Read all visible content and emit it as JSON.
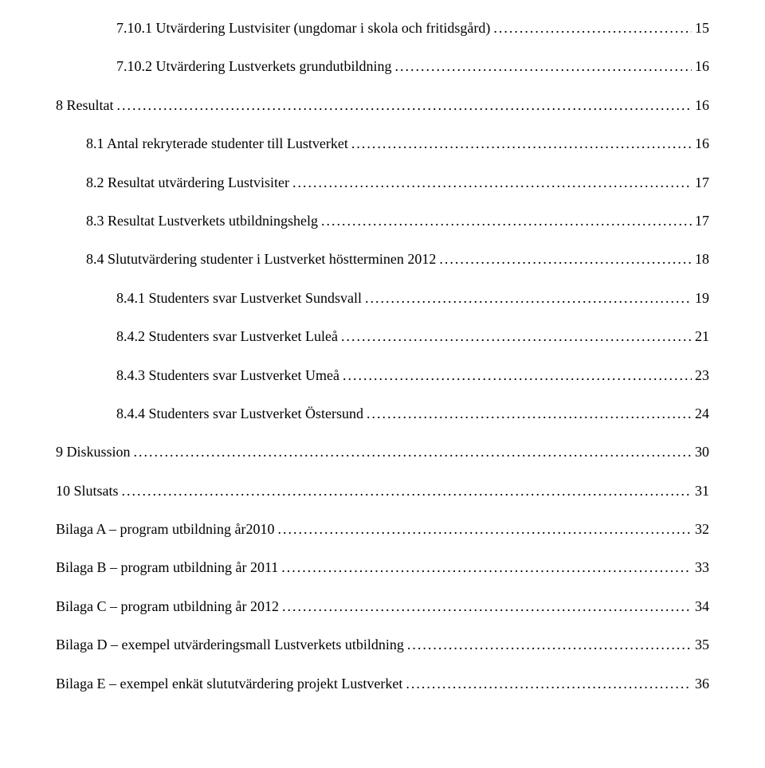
{
  "entries": [
    {
      "indent": 2,
      "label": "7.10.1 Utvärdering Lustvisiter (ungdomar i skola och fritidsgård)",
      "page": "15"
    },
    {
      "indent": 2,
      "label": "7.10.2 Utvärdering Lustverkets grundutbildning",
      "page": "16"
    },
    {
      "indent": 0,
      "label": "8 Resultat",
      "page": "16"
    },
    {
      "indent": 1,
      "label": "8.1 Antal rekryterade studenter till Lustverket",
      "page": "16"
    },
    {
      "indent": 1,
      "label": "8.2 Resultat utvärdering Lustvisiter",
      "page": "17"
    },
    {
      "indent": 1,
      "label": "8.3 Resultat Lustverkets utbildningshelg",
      "page": "17"
    },
    {
      "indent": 1,
      "label": "8.4 Slututvärdering studenter i Lustverket höstterminen 2012",
      "page": "18"
    },
    {
      "indent": 2,
      "label": "8.4.1 Studenters svar Lustverket Sundsvall",
      "page": "19"
    },
    {
      "indent": 2,
      "label": "8.4.2 Studenters svar Lustverket Luleå",
      "page": "21"
    },
    {
      "indent": 2,
      "label": "8.4.3 Studenters svar Lustverket Umeå",
      "page": "23"
    },
    {
      "indent": 2,
      "label": "8.4.4 Studenters svar Lustverket Östersund",
      "page": "24"
    },
    {
      "indent": 0,
      "label": "9 Diskussion",
      "page": "30"
    },
    {
      "indent": 0,
      "label": "10 Slutsats",
      "page": "31"
    },
    {
      "indent": 0,
      "label": "Bilaga A – program utbildning år2010",
      "page": "32"
    },
    {
      "indent": 0,
      "label": "Bilaga B – program utbildning år 2011",
      "page": "33"
    },
    {
      "indent": 0,
      "label": "Bilaga C – program utbildning år 2012",
      "page": "34"
    },
    {
      "indent": 0,
      "label": "Bilaga D – exempel utvärderingsmall Lustverkets utbildning",
      "page": "35"
    },
    {
      "indent": 0,
      "label": "Bilaga E – exempel enkät slututvärdering projekt Lustverket",
      "page": "36"
    }
  ]
}
